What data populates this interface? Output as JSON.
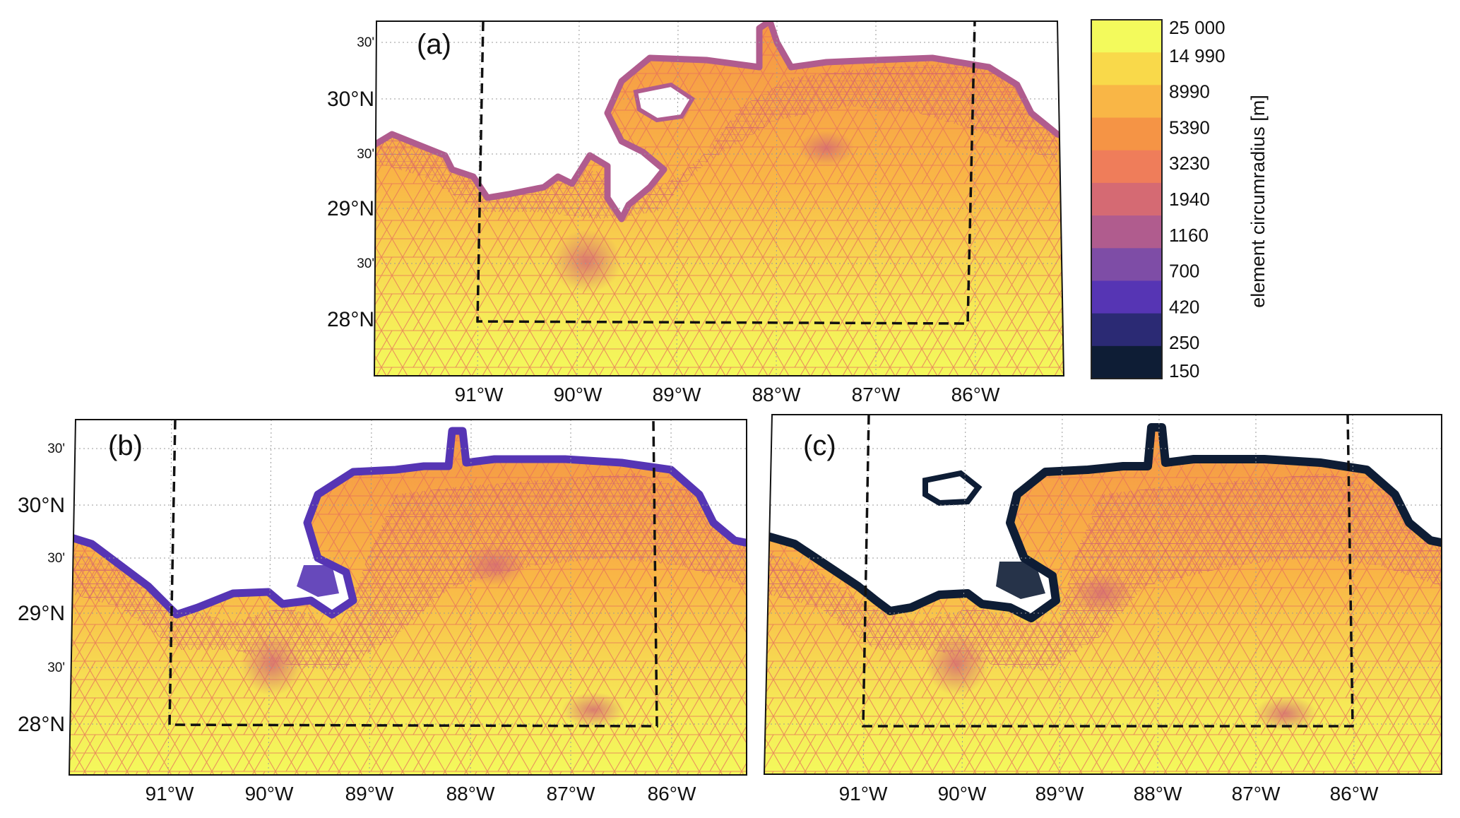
{
  "colorbar": {
    "title": "element circumradius [m]",
    "levels": [
      "25 000",
      "14 990",
      "8990",
      "5390",
      "3230",
      "1940",
      "1160",
      "700",
      "420",
      "250",
      "150"
    ],
    "colors": [
      "#f3fa5c",
      "#f9d94a",
      "#f9b646",
      "#f59445",
      "#ef7d5a",
      "#d56a73",
      "#b05c8e",
      "#7e4da6",
      "#5635b4",
      "#2b2a74",
      "#0e1d35"
    ]
  },
  "grid_ticks": {
    "longitude": [
      "91°W",
      "90°W",
      "89°W",
      "88°W",
      "87°W",
      "86°W"
    ],
    "latitude_major": [
      "30°N",
      "29°N",
      "28°N"
    ],
    "latitude_minor": [
      "30'",
      "30'",
      "30'",
      "30'"
    ]
  },
  "panels": [
    {
      "label": "(a)",
      "coast_color": "#b05c8e",
      "bay_color": "#b05c8e"
    },
    {
      "label": "(b)",
      "coast_color": "#5635b4",
      "bay_color": "#5635b4"
    },
    {
      "label": "(c)",
      "coast_color": "#0e1d35",
      "bay_color": "#0e1d35"
    }
  ]
}
